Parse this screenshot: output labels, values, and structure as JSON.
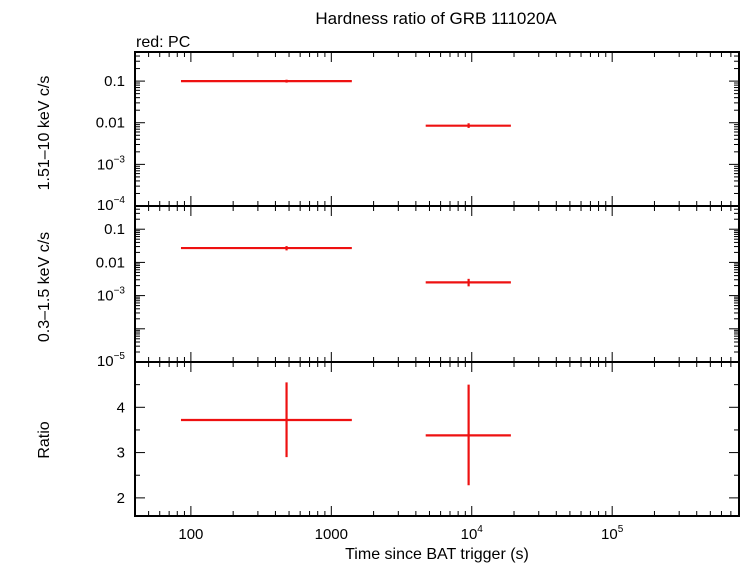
{
  "chart_data": {
    "type": "scatter",
    "title": "Hardness ratio of GRB 111020A",
    "legend": "red: PC",
    "xlabel": "Time since BAT trigger (s)",
    "x_scale": "log",
    "xlim": [
      40,
      800000
    ],
    "x_ticks": [
      {
        "value": 100,
        "label": "100",
        "sup": ""
      },
      {
        "value": 1000,
        "label": "1000",
        "sup": ""
      },
      {
        "value": 10000,
        "label": "10",
        "sup": "4"
      },
      {
        "value": 100000,
        "label": "10",
        "sup": "5"
      }
    ],
    "panels": [
      {
        "name": "hard",
        "ylabel": "1.51–10 keV c/s",
        "y_scale": "log",
        "ylim": [
          0.0001,
          0.5
        ],
        "y_ticks": [
          {
            "value": 0.1,
            "label": "0.1",
            "sup": ""
          },
          {
            "value": 0.01,
            "label": "0.01",
            "sup": ""
          },
          {
            "value": 0.001,
            "label": "10",
            "sup": "−3"
          },
          {
            "value": 0.0001,
            "label": "10",
            "sup": "−4"
          }
        ],
        "points": [
          {
            "x": 480,
            "xlo": 85,
            "xhi": 1400,
            "y": 0.1,
            "ylo": 0.092,
            "yhi": 0.108
          },
          {
            "x": 9500,
            "xlo": 4700,
            "xhi": 19000,
            "y": 0.0085,
            "ylo": 0.0075,
            "yhi": 0.0097
          }
        ]
      },
      {
        "name": "soft",
        "ylabel": "0.3–1.5 keV c/s",
        "y_scale": "log",
        "ylim": [
          1e-05,
          0.5
        ],
        "y_ticks": [
          {
            "value": 0.1,
            "label": "0.1",
            "sup": ""
          },
          {
            "value": 0.01,
            "label": "0.01",
            "sup": ""
          },
          {
            "value": 0.001,
            "label": "10",
            "sup": "−3"
          },
          {
            "value": 1e-05,
            "label": "10",
            "sup": "−5"
          }
        ],
        "points": [
          {
            "x": 480,
            "xlo": 85,
            "xhi": 1400,
            "y": 0.027,
            "ylo": 0.023,
            "yhi": 0.031
          },
          {
            "x": 9500,
            "xlo": 4700,
            "xhi": 19000,
            "y": 0.0025,
            "ylo": 0.0019,
            "yhi": 0.0032
          }
        ]
      },
      {
        "name": "ratio",
        "ylabel": "Ratio",
        "y_scale": "linear",
        "ylim": [
          1.6,
          5.0
        ],
        "y_ticks": [
          {
            "value": 4,
            "label": "4",
            "sup": ""
          },
          {
            "value": 3,
            "label": "3",
            "sup": ""
          },
          {
            "value": 2,
            "label": "2",
            "sup": ""
          }
        ],
        "points": [
          {
            "x": 480,
            "xlo": 85,
            "xhi": 1400,
            "y": 3.72,
            "ylo": 2.9,
            "yhi": 4.55
          },
          {
            "x": 9500,
            "xlo": 4700,
            "xhi": 19000,
            "y": 3.38,
            "ylo": 2.28,
            "yhi": 4.5
          }
        ]
      }
    ],
    "colors": {
      "series": "#ee1111",
      "axes": "#000000"
    }
  }
}
